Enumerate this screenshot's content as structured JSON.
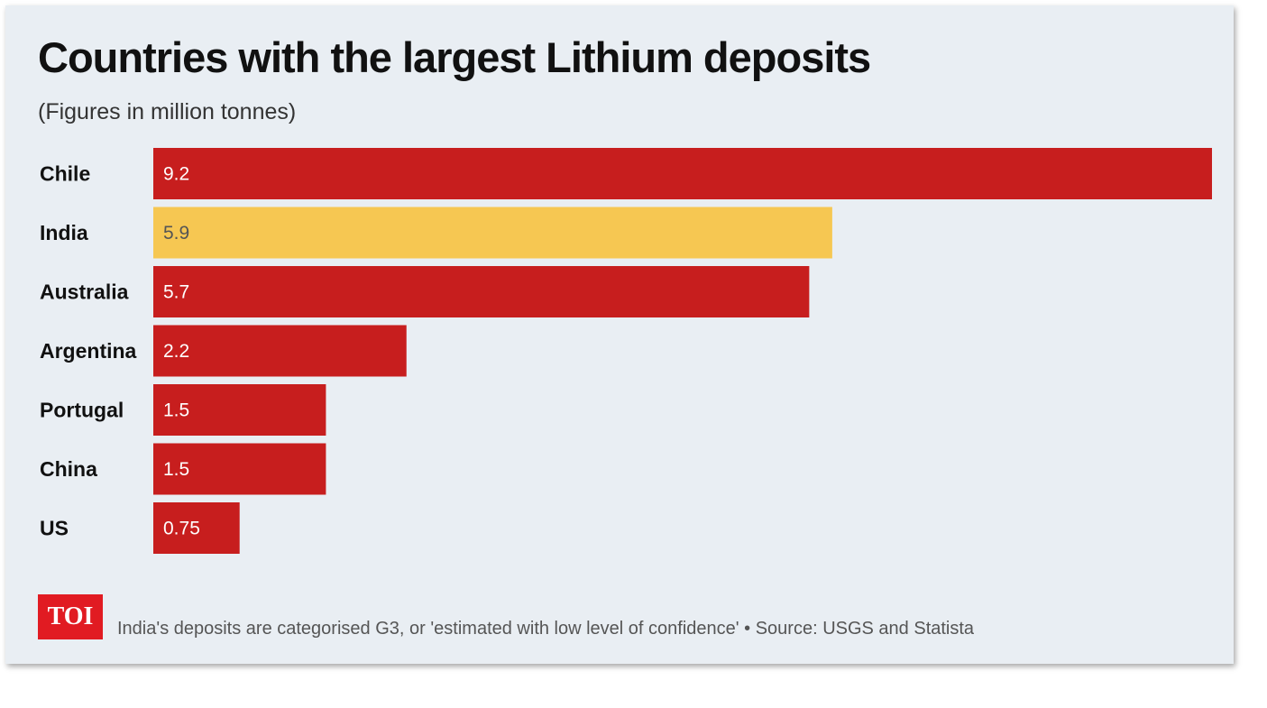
{
  "title": "Countries with the largest Lithium deposits",
  "subtitle": "(Figures in million tonnes)",
  "logo_text": "TOI",
  "footnote": "India's deposits are categorised G3, or 'estimated with low level of confidence' • Source: USGS and Statista",
  "colors": {
    "background": "#e9eef3",
    "bar_default": "#c71e1e",
    "bar_highlight": "#f6c752",
    "label_on_default": "#ffffff",
    "label_on_highlight": "#555555",
    "logo": "#e11b22"
  },
  "chart_data": {
    "type": "bar",
    "orientation": "horizontal",
    "title": "Countries with the largest Lithium deposits",
    "subtitle": "(Figures in million tonnes)",
    "categories": [
      "Chile",
      "India",
      "Australia",
      "Argentina",
      "Portugal",
      "China",
      "US"
    ],
    "values": [
      9.2,
      5.9,
      5.7,
      2.2,
      1.5,
      1.5,
      0.75
    ],
    "value_labels": [
      "9.2",
      "5.9",
      "5.7",
      "2.2",
      "1.5",
      "1.5",
      "0.75"
    ],
    "highlight": "India",
    "xlabel": "",
    "ylabel": "",
    "xlim": [
      0,
      9.2
    ],
    "grid": false,
    "legend": "none"
  }
}
